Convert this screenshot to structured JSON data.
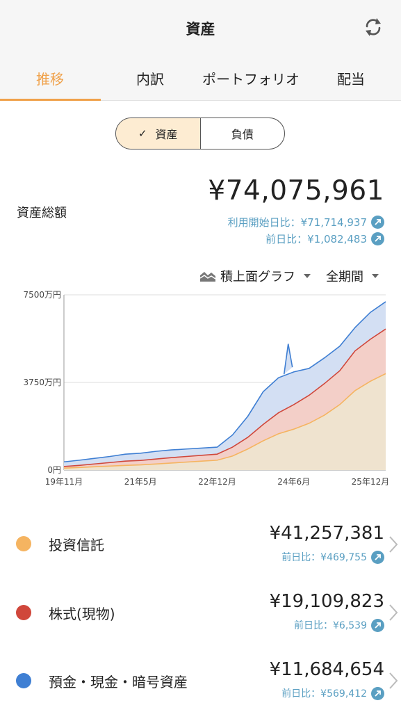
{
  "header": {
    "title": "資産",
    "refresh_icon": "refresh-icon",
    "tabs": [
      {
        "label": "推移",
        "active": true
      },
      {
        "label": "内訳",
        "active": false
      },
      {
        "label": "ポートフォリオ",
        "active": false
      },
      {
        "label": "配当",
        "active": false
      }
    ],
    "accent_color": "#f0a14a"
  },
  "segment": {
    "check_icon": "check-icon",
    "assets_label": "資産",
    "liabilities_label": "負債",
    "selected": "assets"
  },
  "summary": {
    "label": "資産総額",
    "total": "¥74,075,961",
    "since_start": "利用開始日比：¥71,714,937",
    "prev_day": "前日比：¥1,082,483"
  },
  "controls": {
    "graph_icon": "stacked-area-icon",
    "graph_type": "積上面グラフ",
    "period": "全期間"
  },
  "chart_data": {
    "type": "area",
    "stacked": true,
    "y_ticks": [
      "7500万円",
      "3750万円",
      "0円"
    ],
    "ylim": [
      0,
      7500
    ],
    "x_ticks": [
      "19年11月",
      "21年5月",
      "22年12月",
      "24年6月",
      "25年12月"
    ],
    "x": [
      "19年11月",
      "20年3月",
      "20年7月",
      "20年11月",
      "21年3月",
      "21年5月",
      "21年9月",
      "22年1月",
      "22年5月",
      "22年9月",
      "22年12月",
      "23年4月",
      "23年8月",
      "23年12月",
      "24年4月",
      "24年6月",
      "24年10月",
      "25年2月",
      "25年6月",
      "25年10月",
      "25年12月",
      "26年2月"
    ],
    "series": [
      {
        "name": "投資信託",
        "color": "#f5b461",
        "values": [
          80,
          110,
          140,
          170,
          200,
          220,
          260,
          300,
          340,
          380,
          420,
          600,
          900,
          1250,
          1550,
          1750,
          2000,
          2350,
          2800,
          3400,
          3800,
          4125
        ]
      },
      {
        "name": "株式(現物)",
        "color": "#d0473b",
        "values": [
          70,
          90,
          120,
          150,
          180,
          190,
          210,
          230,
          240,
          250,
          260,
          380,
          500,
          700,
          900,
          1050,
          1200,
          1350,
          1450,
          1700,
          1800,
          1911
        ]
      },
      {
        "name": "預金・現金・暗号資産",
        "color": "#3f7fd3",
        "values": [
          200,
          220,
          240,
          260,
          300,
          310,
          330,
          330,
          320,
          310,
          300,
          520,
          900,
          1400,
          1500,
          1400,
          1150,
          1100,
          1050,
          1000,
          1150,
          1168
        ]
      }
    ],
    "peak": {
      "x": "24年6月",
      "total_extra": 1200
    },
    "grid": true
  },
  "categories": [
    {
      "name": "投資信託",
      "color": "#f5b461",
      "value": "¥41,257,381",
      "prev_day": "前日比：¥469,755"
    },
    {
      "name": "株式(現物)",
      "color": "#d0473b",
      "value": "¥19,109,823",
      "prev_day": "前日比：¥6,539"
    },
    {
      "name": "預金・現金・暗号資産",
      "color": "#3f7fd3",
      "value": "¥11,684,654",
      "prev_day": "前日比：¥569,412"
    }
  ]
}
